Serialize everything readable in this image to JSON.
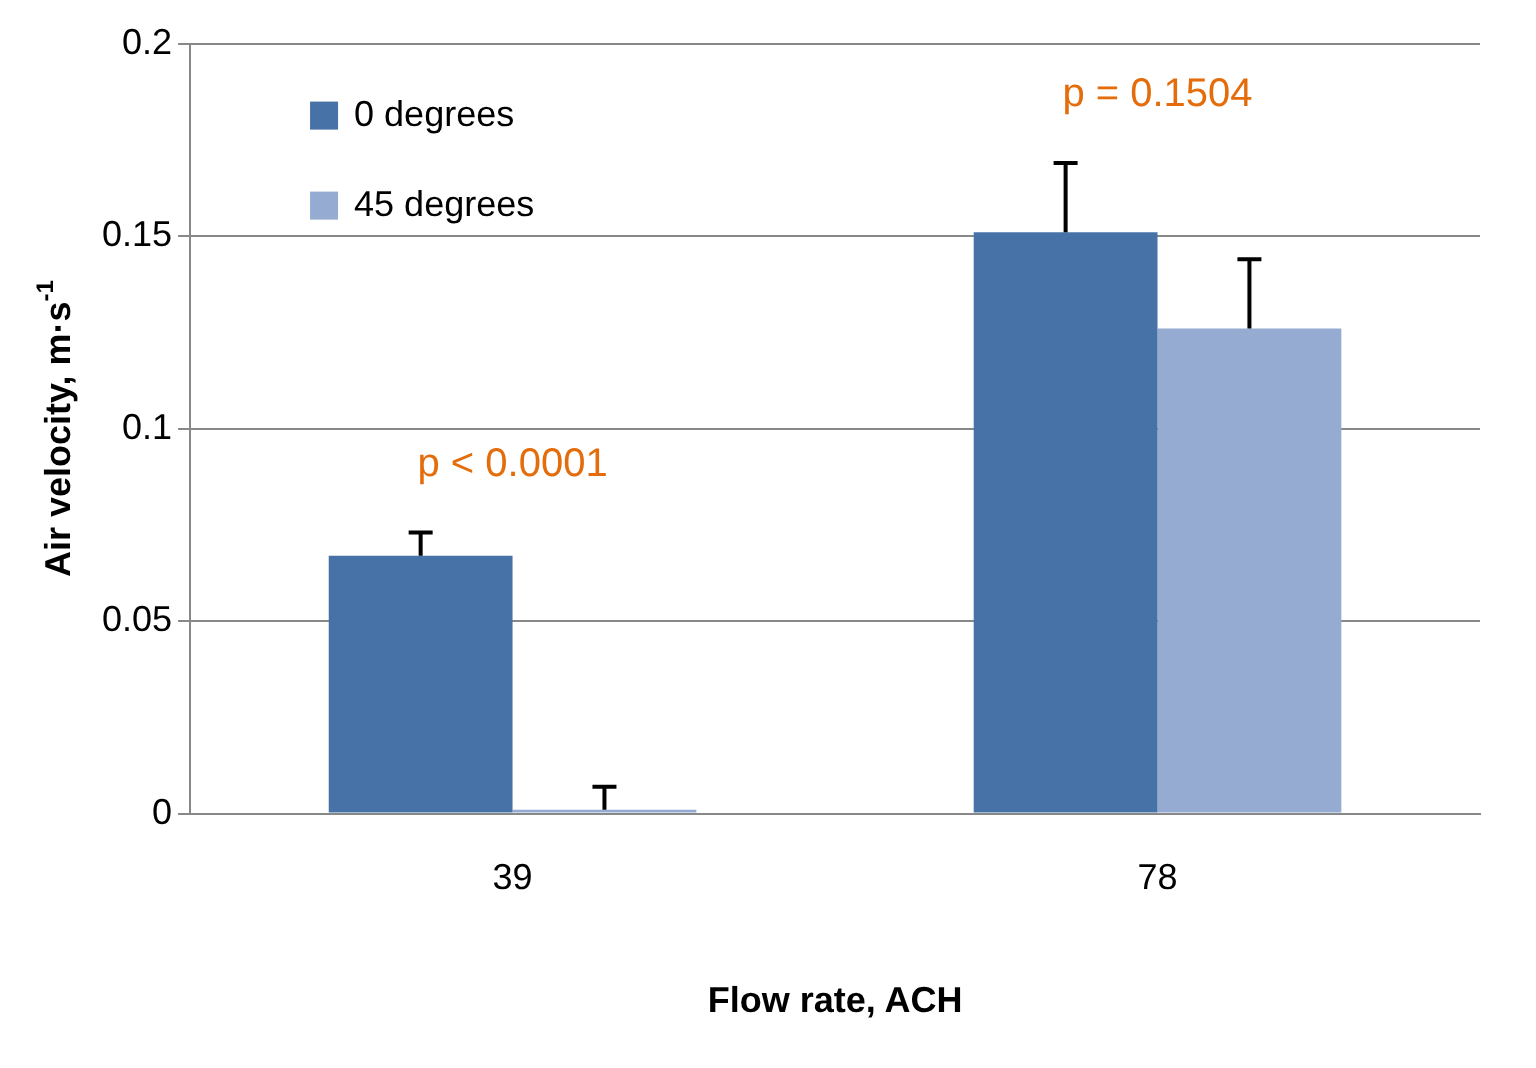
{
  "chart_data": {
    "type": "bar",
    "xlabel": "Flow rate, ACH",
    "ylabel": "Air velocity, m·s$^{-1}$",
    "categories": [
      "39",
      "78"
    ],
    "series": [
      {
        "name": "0 degrees",
        "color": "#4672a8",
        "values": [
          0.067,
          0.151
        ],
        "errors": [
          [
            0.067,
            0.073
          ],
          [
            0.151,
            0.169
          ]
        ]
      },
      {
        "name": "45 degrees",
        "color": "#95abd2",
        "values": [
          0.001,
          0.126
        ],
        "errors": [
          [
            0.001,
            0.007
          ],
          [
            0.126,
            0.144
          ]
        ]
      }
    ],
    "ylim": [
      0,
      0.2
    ],
    "yticks": [
      0,
      0.05,
      0.1,
      0.15,
      0.2
    ],
    "grid": "y",
    "legend": "top left",
    "annotations": [
      "p < 0.0001",
      "p = 0.1504"
    ]
  }
}
